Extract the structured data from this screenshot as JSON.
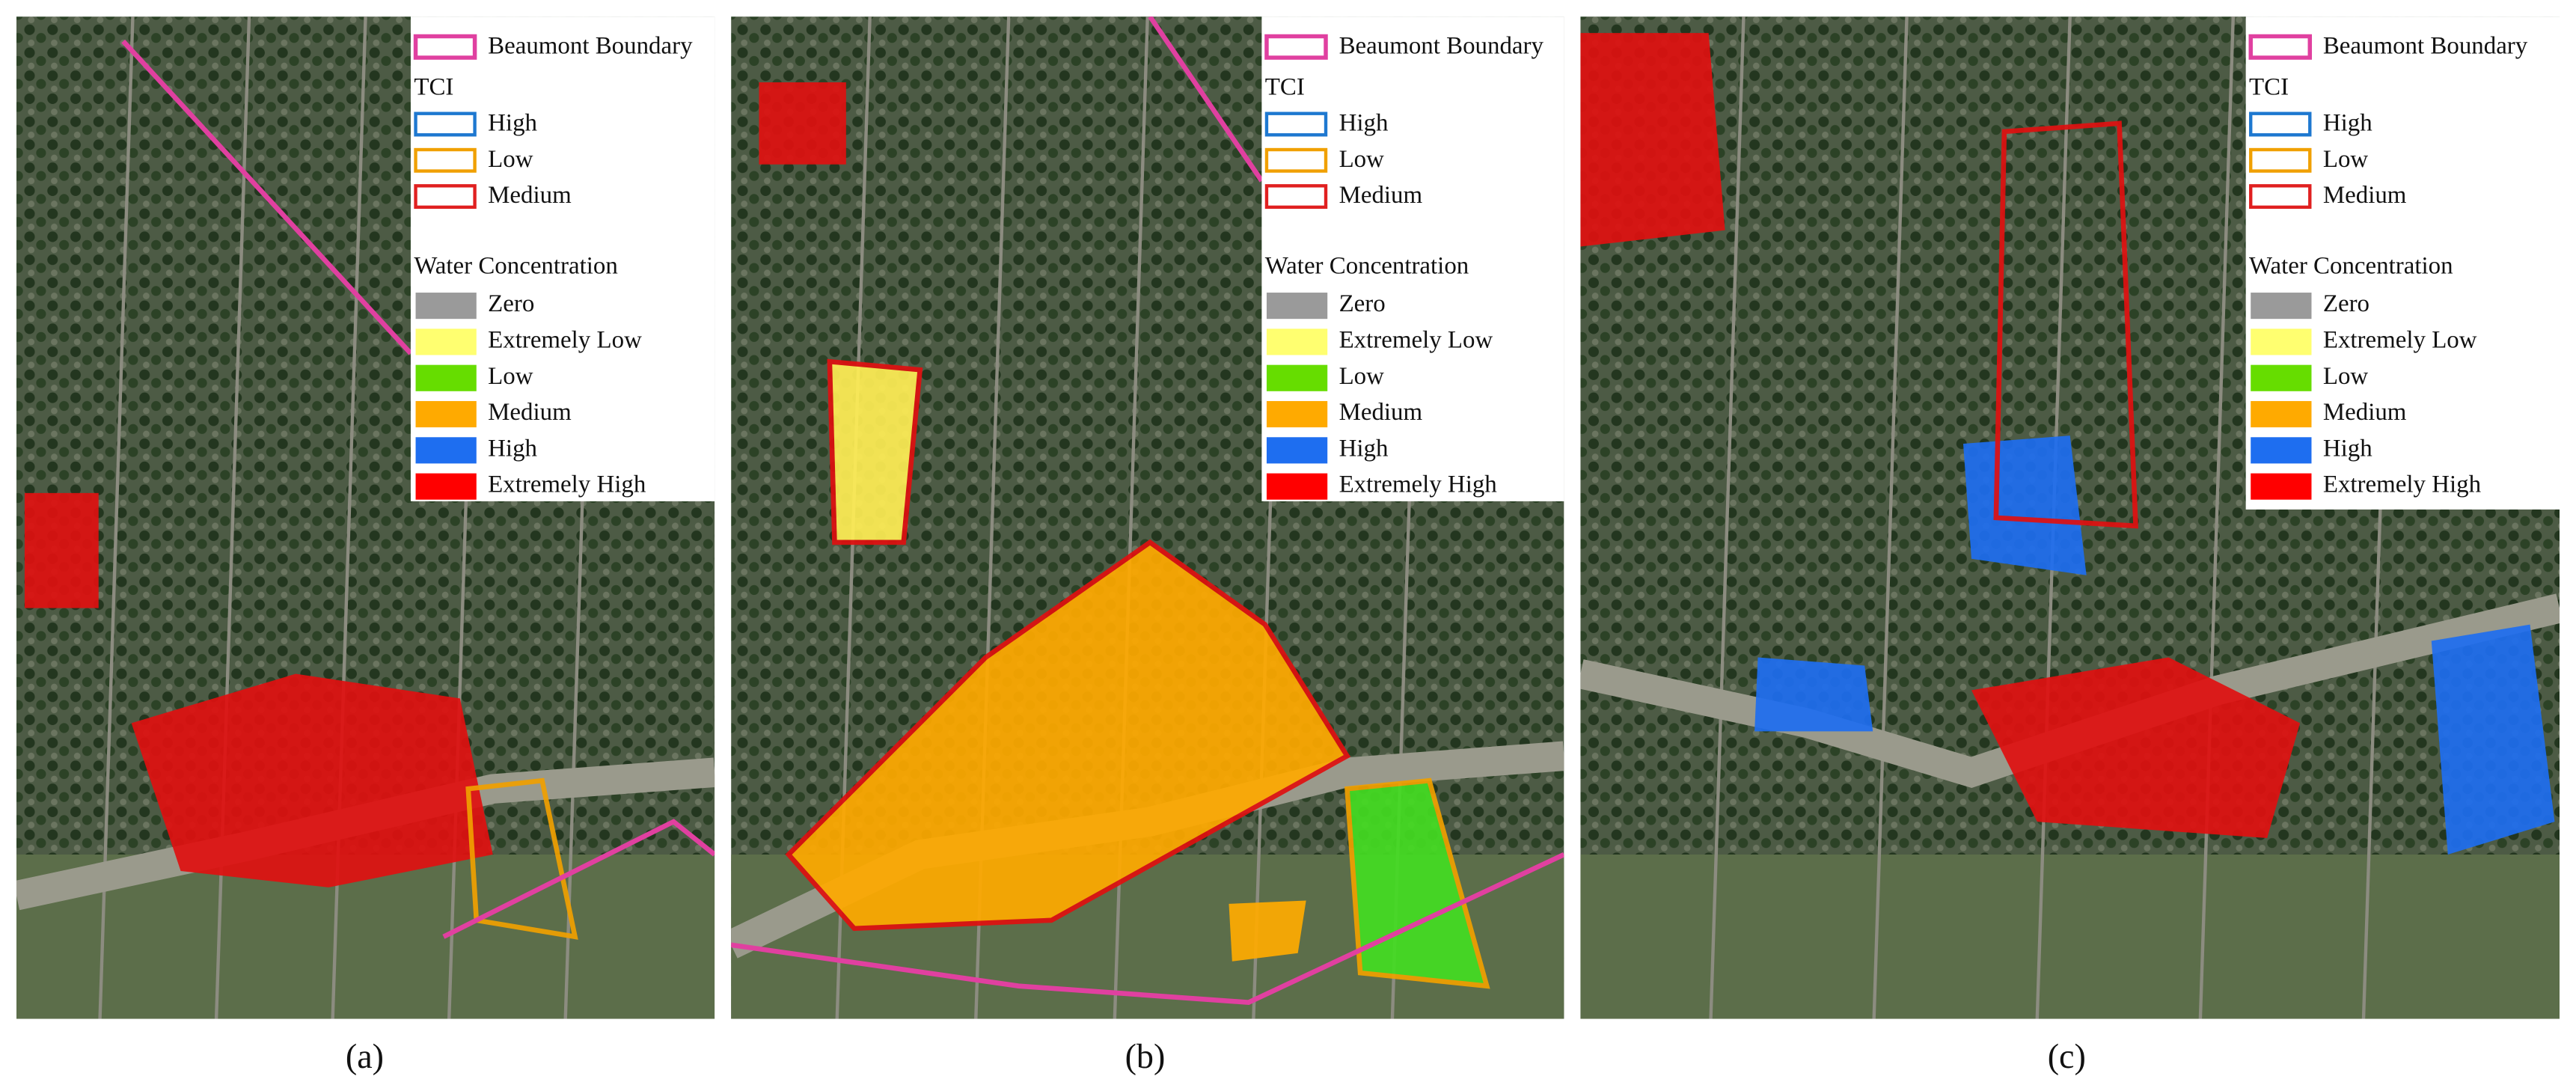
{
  "panels": [
    {
      "caption": "(a)",
      "legend": {
        "boundary": "Beaumont Boundary",
        "tci_title": "TCI",
        "tci": [
          "High",
          "Low",
          "Medium"
        ],
        "water_title": "Water Concentration",
        "water": [
          "Zero",
          "Extremely Low",
          "Low",
          "Medium",
          "High",
          "Extremely High"
        ]
      }
    },
    {
      "caption": "(b)",
      "legend": {
        "boundary": "Beaumont Boundary",
        "tci_title": "TCI",
        "tci": [
          "High",
          "Low",
          "Medium"
        ],
        "water_title": "Water Concentration",
        "water": [
          "Zero",
          "Extremely Low",
          "Low",
          "Medium",
          "High",
          "Extremely High"
        ]
      }
    },
    {
      "caption": "(c)",
      "legend": {
        "boundary": "Beaumont Boundary",
        "tci_title": "TCI",
        "tci": [
          "High",
          "Low",
          "Medium"
        ],
        "water_title": "Water Concentration",
        "water": [
          "Zero",
          "Extremely Low",
          "Low",
          "Medium",
          "High",
          "Extremely High"
        ]
      }
    }
  ]
}
